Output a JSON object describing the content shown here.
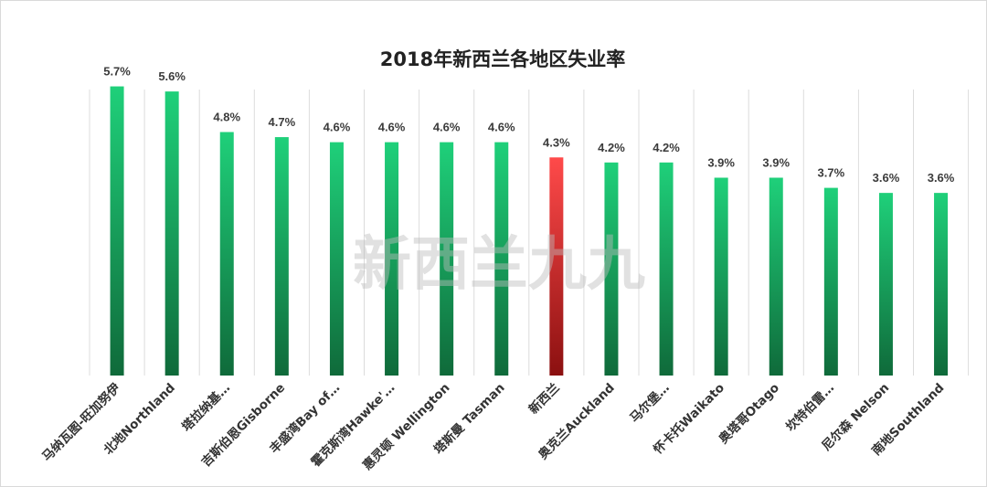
{
  "chart_data": {
    "type": "bar",
    "title": "2018年新西兰各地区失业率",
    "categories": [
      "马纳瓦图-旺加努伊",
      "北地Northland",
      "塔拉纳基…",
      "吉斯伯恩Gisborne",
      "丰盛湾Bay of…",
      "霍克斯湾Hawke'…",
      "惠灵顿 Wellington",
      "塔斯曼 Tasman",
      "新西兰",
      "奥克兰Auckland",
      "马尔堡…",
      "怀卡托Waikato",
      "奥塔哥Otago",
      "坎特伯雷…",
      "尼尔森 Nelson",
      "南地Southland"
    ],
    "values": [
      5.7,
      5.6,
      4.8,
      4.7,
      4.6,
      4.6,
      4.6,
      4.6,
      4.3,
      4.2,
      4.2,
      3.9,
      3.9,
      3.7,
      3.6,
      3.6
    ],
    "value_labels": [
      "5.7%",
      "5.6%",
      "4.8%",
      "4.7%",
      "4.6%",
      "4.6%",
      "4.6%",
      "4.6%",
      "4.3%",
      "4.2%",
      "4.2%",
      "3.9%",
      "3.9%",
      "3.7%",
      "3.6%",
      "3.6%"
    ],
    "highlight_index": 8,
    "ylim": [
      0,
      5.8
    ],
    "xlabel": "",
    "ylabel": "",
    "grid": "vertical separators",
    "legend": "none",
    "colors": {
      "bar_top": "#1fd07a",
      "bar_bottom": "#0f6a3a",
      "highlight_top": "#ff4a4a",
      "highlight_bottom": "#8b1010",
      "highlight_label": "#e01010",
      "label": "#3b3b3b",
      "grid": "#dcdcdc"
    }
  },
  "watermark": "新西兰九九"
}
